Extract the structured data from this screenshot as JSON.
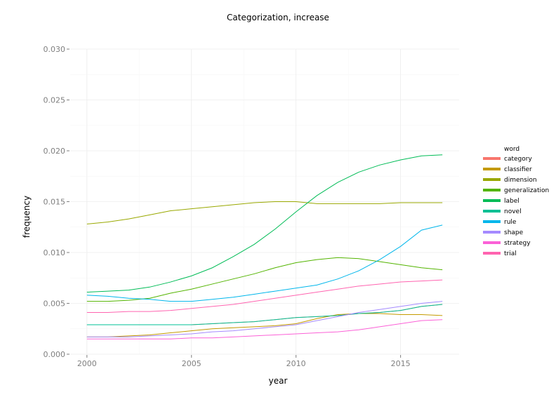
{
  "chart_data": {
    "type": "line",
    "title": "Categorization, increase",
    "xlabel": "year",
    "ylabel": "frequency",
    "xlim": [
      1999.2,
      2017.8
    ],
    "ylim": [
      0,
      0.03
    ],
    "x_ticks": [
      2000,
      2005,
      2010,
      2015
    ],
    "y_ticks": [
      0.0,
      0.005,
      0.01,
      0.015,
      0.02,
      0.025,
      0.03
    ],
    "x_tick_labels": [
      "2000",
      "2005",
      "2010",
      "2015"
    ],
    "y_tick_labels": [
      "0.000",
      "0.005",
      "0.010",
      "0.015",
      "0.020",
      "0.025",
      "0.030"
    ],
    "grid": true,
    "legend_title": "word",
    "legend_position": "right",
    "x": [
      2000,
      2001,
      2002,
      2003,
      2004,
      2005,
      2006,
      2007,
      2008,
      2009,
      2010,
      2011,
      2012,
      2013,
      2014,
      2015,
      2016,
      2017
    ],
    "series": [
      {
        "name": "category",
        "color": "#f8766d",
        "values": [
          0.0029,
          0.0029,
          0.0029,
          0.0029,
          0.0029,
          0.0029,
          0.003,
          0.0031,
          0.0032,
          0.0034,
          0.0036,
          0.0037,
          0.0038,
          0.004,
          0.0041,
          0.0043,
          0.0047,
          0.0049
        ]
      },
      {
        "name": "classifier",
        "color": "#c49a00",
        "values": [
          0.0017,
          0.0017,
          0.0018,
          0.0019,
          0.0021,
          0.0023,
          0.0025,
          0.0026,
          0.0027,
          0.0028,
          0.003,
          0.0035,
          0.0039,
          0.004,
          0.004,
          0.0039,
          0.0039,
          0.0038
        ]
      },
      {
        "name": "dimension",
        "color": "#99a800",
        "values": [
          0.0128,
          0.013,
          0.0133,
          0.0137,
          0.0141,
          0.0143,
          0.0145,
          0.0147,
          0.0149,
          0.015,
          0.015,
          0.0148,
          0.0148,
          0.0148,
          0.0148,
          0.0149,
          0.0149,
          0.0149
        ]
      },
      {
        "name": "generalization",
        "color": "#53b400",
        "values": [
          0.0052,
          0.0052,
          0.0053,
          0.0055,
          0.006,
          0.0064,
          0.0069,
          0.0074,
          0.0079,
          0.0085,
          0.009,
          0.0093,
          0.0095,
          0.0094,
          0.0091,
          0.0088,
          0.0085,
          0.0083
        ]
      },
      {
        "name": "label",
        "color": "#00bc56",
        "values": [
          0.0061,
          0.0062,
          0.0063,
          0.0066,
          0.0071,
          0.0077,
          0.0085,
          0.0096,
          0.0108,
          0.0123,
          0.014,
          0.0156,
          0.0169,
          0.0179,
          0.0186,
          0.0191,
          0.0195,
          0.0196
        ]
      },
      {
        "name": "novel",
        "color": "#00c094",
        "values": [
          0.0029,
          0.0029,
          0.0029,
          0.0029,
          0.0029,
          0.0029,
          0.003,
          0.0031,
          0.0032,
          0.0034,
          0.0036,
          0.0037,
          0.0038,
          0.004,
          0.0041,
          0.0043,
          0.0047,
          0.0049
        ]
      },
      {
        "name": "rule",
        "color": "#00b6eb",
        "values": [
          0.0058,
          0.0057,
          0.0055,
          0.0054,
          0.0052,
          0.0052,
          0.0054,
          0.0056,
          0.0059,
          0.0062,
          0.0065,
          0.0068,
          0.0074,
          0.0082,
          0.0093,
          0.0106,
          0.0122,
          0.0127
        ]
      },
      {
        "name": "shape",
        "color": "#a58aff",
        "values": [
          0.0017,
          0.0017,
          0.0017,
          0.0018,
          0.0019,
          0.002,
          0.0022,
          0.0023,
          0.0025,
          0.0027,
          0.0029,
          0.0033,
          0.0037,
          0.0041,
          0.0044,
          0.0047,
          0.005,
          0.0052
        ]
      },
      {
        "name": "strategy",
        "color": "#fb61d7",
        "values": [
          0.0015,
          0.0015,
          0.0015,
          0.0015,
          0.0015,
          0.0016,
          0.0016,
          0.0017,
          0.0018,
          0.0019,
          0.002,
          0.0021,
          0.0022,
          0.0024,
          0.0027,
          0.003,
          0.0033,
          0.0034
        ]
      },
      {
        "name": "trial",
        "color": "#ff64b0",
        "values": [
          0.0041,
          0.0041,
          0.0042,
          0.0042,
          0.0043,
          0.0045,
          0.0047,
          0.0049,
          0.0052,
          0.0055,
          0.0058,
          0.0061,
          0.0064,
          0.0067,
          0.0069,
          0.0071,
          0.0072,
          0.0073
        ]
      }
    ]
  }
}
